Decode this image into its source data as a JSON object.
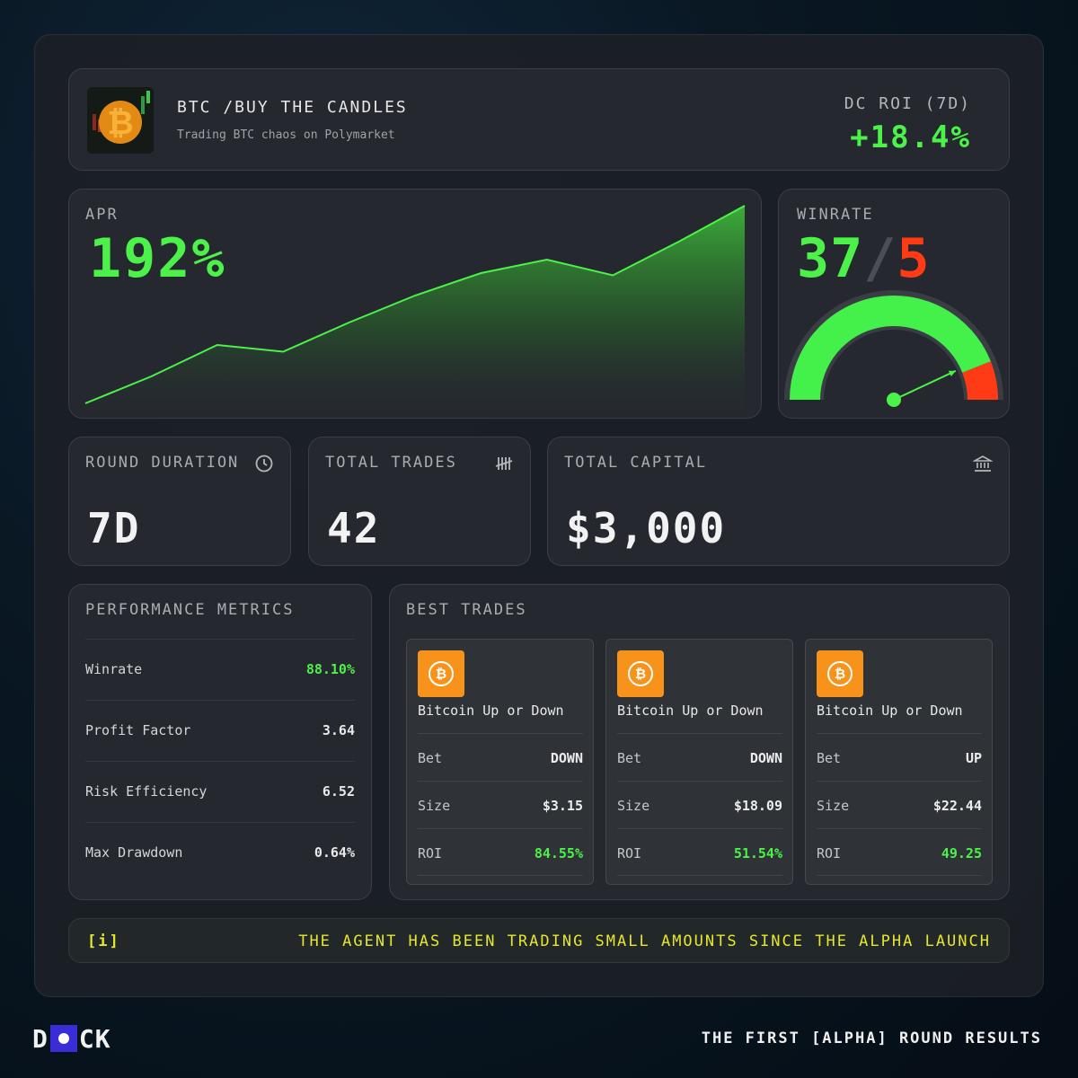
{
  "header": {
    "title": "BTC /BUY THE CANDLES",
    "subtitle": "Trading BTC chaos on Polymarket",
    "roi_label": "DC ROI (7D)",
    "roi_value": "+18.4%"
  },
  "apr": {
    "label": "APR",
    "value": "192%"
  },
  "chart_data": {
    "type": "area",
    "title": "",
    "x": [
      0,
      1,
      2,
      3,
      4,
      5,
      6,
      7,
      8,
      9,
      10
    ],
    "values": [
      0,
      12,
      26,
      23,
      36,
      48,
      58,
      64,
      57,
      72,
      88
    ],
    "xlabel": "",
    "ylabel": "",
    "grid": false,
    "color": "#4cf24a"
  },
  "winrate": {
    "label": "WINRATE",
    "wins": "37",
    "slash": "/",
    "losses": "5",
    "win_fraction": 0.88,
    "win_color": "#44f04a",
    "loss_color": "#ff3b16"
  },
  "stats": {
    "round_duration": {
      "label": "ROUND DURATION",
      "value": "7D",
      "icon": "clock-icon"
    },
    "total_trades": {
      "label": "TOTAL TRADES",
      "value": "42",
      "icon": "tally-icon"
    },
    "total_capital": {
      "label": "TOTAL CAPITAL",
      "value": "$3,000",
      "icon": "bank-icon"
    }
  },
  "performance": {
    "label": "PERFORMANCE METRICS",
    "rows": [
      {
        "name": "Winrate",
        "value": "88.10%"
      },
      {
        "name": "Profit Factor",
        "value": "3.64"
      },
      {
        "name": "Risk Efficiency",
        "value": "6.52"
      },
      {
        "name": "Max Drawdown",
        "value": "0.64%"
      }
    ]
  },
  "best_trades": {
    "label": "BEST TRADES",
    "bet_key": "Bet",
    "size_key": "Size",
    "roi_key": "ROI",
    "coin_symbol": "₿",
    "trades": [
      {
        "title": "Bitcoin Up or Down",
        "bet": "DOWN",
        "size": "$3.15",
        "roi": "84.55%"
      },
      {
        "title": "Bitcoin Up or Down",
        "bet": "DOWN",
        "size": "$18.09",
        "roi": "51.54%"
      },
      {
        "title": "Bitcoin Up or Down",
        "bet": "UP",
        "size": "$22.44",
        "roi": "49.25"
      }
    ]
  },
  "info": {
    "tag": "[i]",
    "message": "THE AGENT HAS BEEN TRADING SMALL AMOUNTS SINCE THE ALPHA LAUNCH"
  },
  "footer": {
    "logo_left": "D",
    "logo_right": "CK",
    "tagline": "THE FIRST [ALPHA] ROUND RESULTS"
  }
}
